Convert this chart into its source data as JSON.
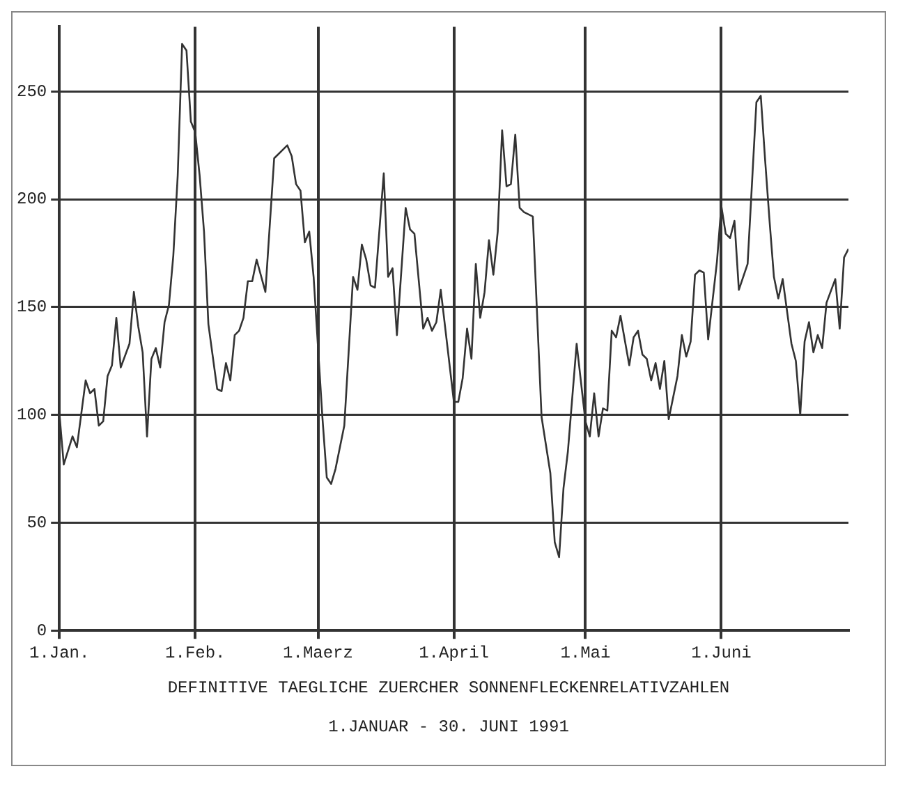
{
  "chart_data": {
    "type": "line",
    "title": "DEFINITIVE TAEGLICHE ZUERCHER SONNENFLECKENRELATIVZAHLEN",
    "subtitle": "1.JANUAR - 30. JUNI 1991",
    "x": [
      "1991-01-01",
      "1991-01-02",
      "1991-01-04",
      "1991-01-05",
      "1991-01-07",
      "1991-01-08",
      "1991-01-09",
      "1991-01-10",
      "1991-01-11",
      "1991-01-12",
      "1991-01-13",
      "1991-01-14",
      "1991-01-15",
      "1991-01-17",
      "1991-01-18",
      "1991-01-19",
      "1991-01-20",
      "1991-01-21",
      "1991-01-22",
      "1991-01-23",
      "1991-01-24",
      "1991-01-25",
      "1991-01-26",
      "1991-01-27",
      "1991-01-28",
      "1991-01-29",
      "1991-01-30",
      "1991-01-31",
      "1991-02-01",
      "1991-02-02",
      "1991-02-03",
      "1991-02-04",
      "1991-02-06",
      "1991-02-07",
      "1991-02-08",
      "1991-02-09",
      "1991-02-10",
      "1991-02-11",
      "1991-02-12",
      "1991-02-13",
      "1991-02-14",
      "1991-02-15",
      "1991-02-17",
      "1991-02-19",
      "1991-02-22",
      "1991-02-23",
      "1991-02-24",
      "1991-02-25",
      "1991-02-26",
      "1991-02-27",
      "1991-02-28",
      "1991-03-02",
      "1991-03-03",
      "1991-03-04",
      "1991-03-05",
      "1991-03-07",
      "1991-03-09",
      "1991-03-10",
      "1991-03-11",
      "1991-03-12",
      "1991-03-13",
      "1991-03-14",
      "1991-03-16",
      "1991-03-17",
      "1991-03-18",
      "1991-03-19",
      "1991-03-21",
      "1991-03-22",
      "1991-03-23",
      "1991-03-25",
      "1991-03-26",
      "1991-03-27",
      "1991-03-28",
      "1991-03-29",
      "1991-04-01",
      "1991-04-02",
      "1991-04-03",
      "1991-04-04",
      "1991-04-05",
      "1991-04-06",
      "1991-04-07",
      "1991-04-08",
      "1991-04-09",
      "1991-04-10",
      "1991-04-11",
      "1991-04-12",
      "1991-04-13",
      "1991-04-14",
      "1991-04-15",
      "1991-04-16",
      "1991-04-17",
      "1991-04-19",
      "1991-04-21",
      "1991-04-23",
      "1991-04-24",
      "1991-04-25",
      "1991-04-26",
      "1991-04-27",
      "1991-04-29",
      "1991-05-01",
      "1991-05-02",
      "1991-05-03",
      "1991-05-04",
      "1991-05-05",
      "1991-05-06",
      "1991-05-07",
      "1991-05-08",
      "1991-05-09",
      "1991-05-11",
      "1991-05-12",
      "1991-05-13",
      "1991-05-14",
      "1991-05-15",
      "1991-05-16",
      "1991-05-17",
      "1991-05-18",
      "1991-05-19",
      "1991-05-20",
      "1991-05-22",
      "1991-05-23",
      "1991-05-24",
      "1991-05-25",
      "1991-05-26",
      "1991-05-27",
      "1991-05-28",
      "1991-05-29",
      "1991-05-31",
      "1991-06-01",
      "1991-06-02",
      "1991-06-03",
      "1991-06-04",
      "1991-06-05",
      "1991-06-07",
      "1991-06-09",
      "1991-06-10",
      "1991-06-11",
      "1991-06-12",
      "1991-06-13",
      "1991-06-14",
      "1991-06-15",
      "1991-06-17",
      "1991-06-18",
      "1991-06-19",
      "1991-06-20",
      "1991-06-21",
      "1991-06-22",
      "1991-06-23",
      "1991-06-24",
      "1991-06-25",
      "1991-06-27",
      "1991-06-28",
      "1991-06-29",
      "1991-06-30"
    ],
    "values": [
      101,
      77,
      90,
      85,
      116,
      110,
      112,
      95,
      97,
      118,
      123,
      145,
      122,
      133,
      157,
      141,
      129,
      90,
      126,
      131,
      122,
      143,
      151,
      174,
      211,
      272,
      269,
      236,
      231,
      211,
      185,
      142,
      112,
      111,
      124,
      116,
      137,
      139,
      145,
      162,
      162,
      172,
      157,
      219,
      225,
      220,
      207,
      204,
      180,
      185,
      164,
      99,
      71,
      68,
      75,
      95,
      164,
      158,
      179,
      172,
      160,
      159,
      212,
      164,
      168,
      137,
      196,
      186,
      184,
      140,
      145,
      139,
      143,
      158,
      106,
      106,
      117,
      140,
      126,
      170,
      145,
      157,
      181,
      165,
      185,
      232,
      206,
      207,
      230,
      196,
      194,
      192,
      99,
      73,
      41,
      34,
      66,
      83,
      133,
      97,
      90,
      110,
      90,
      103,
      102,
      139,
      136,
      146,
      123,
      136,
      139,
      128,
      126,
      116,
      124,
      112,
      125,
      98,
      118,
      137,
      127,
      134,
      165,
      167,
      166,
      135,
      171,
      197,
      184,
      182,
      190,
      158,
      170,
      245,
      248,
      218,
      190,
      164,
      154,
      163,
      133,
      125,
      100,
      134,
      143,
      129,
      137,
      131,
      152,
      163,
      140,
      173,
      177
    ],
    "color": "#333333",
    "xlim": [
      "1991-01-01",
      "1991-06-30"
    ],
    "xticks": [
      {
        "value": "1991-01-01",
        "label": "1.Jan."
      },
      {
        "value": "1991-02-01",
        "label": "1.Feb."
      },
      {
        "value": "1991-03-01",
        "label": "1.Maerz"
      },
      {
        "value": "1991-04-01",
        "label": "1.April"
      },
      {
        "value": "1991-05-01",
        "label": "1.Mai"
      },
      {
        "value": "1991-06-01",
        "label": "1.Juni"
      }
    ],
    "ylim": [
      0,
      280
    ],
    "yticks": [
      0,
      50,
      100,
      150,
      200,
      250
    ],
    "grid": true,
    "legend": false,
    "marker": "none",
    "line_style": "solid"
  }
}
